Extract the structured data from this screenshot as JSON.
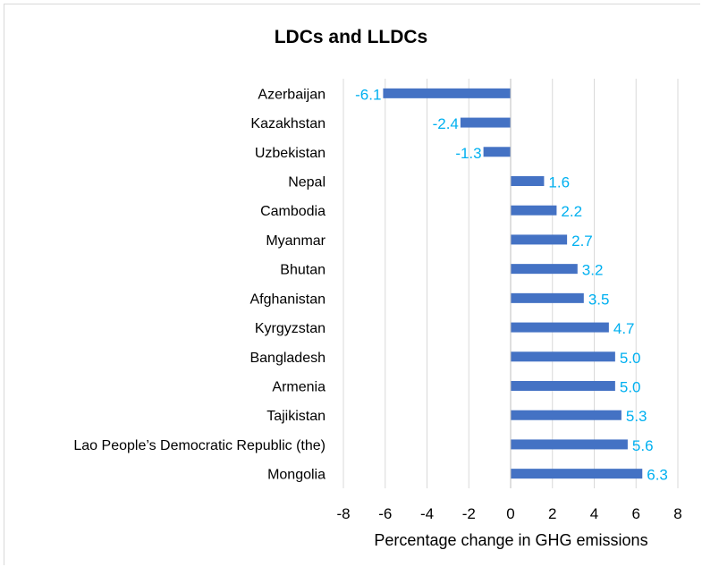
{
  "chart_data": {
    "type": "bar",
    "orientation": "horizontal",
    "title": "LDCs and LLDCs",
    "xlabel": "Percentage change in GHG emissions",
    "ylabel": "",
    "categories": [
      "Azerbaijan",
      "Kazakhstan",
      "Uzbekistan",
      "Nepal",
      "Cambodia",
      "Myanmar",
      "Bhutan",
      "Afghanistan",
      "Kyrgyzstan",
      "Bangladesh",
      "Armenia",
      "Tajikistan",
      "Lao People’s Democratic Republic (the)",
      "Mongolia"
    ],
    "values": [
      -6.1,
      -2.4,
      -1.3,
      1.6,
      2.2,
      2.7,
      3.2,
      3.5,
      4.7,
      5.0,
      5.0,
      5.3,
      5.6,
      6.3
    ],
    "value_labels": [
      "-6.1",
      "-2.4",
      "-1.3",
      "1.6",
      "2.2",
      "2.7",
      "3.2",
      "3.5",
      "4.7",
      "5.0",
      "5.0",
      "5.3",
      "5.6",
      "6.3"
    ],
    "xlim": [
      -8,
      8
    ],
    "xticks": [
      "-8",
      "-6",
      "-4",
      "-2",
      "0",
      "2",
      "4",
      "6",
      "8"
    ],
    "grid": "vertical",
    "legend": "none",
    "colors": {
      "bar": "#4472c4",
      "data_label": "#00b0f0",
      "grid": "#d9d9d9",
      "text": "#000000"
    }
  }
}
